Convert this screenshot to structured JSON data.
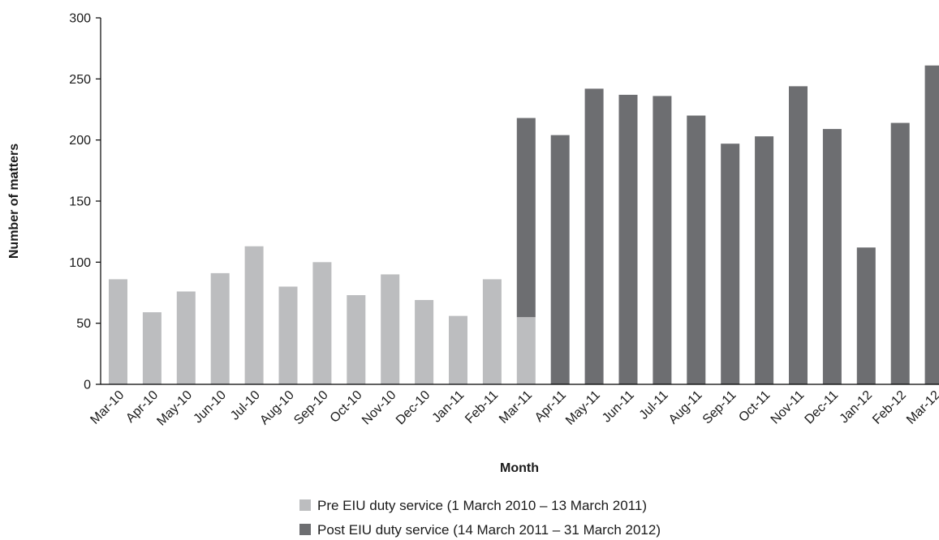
{
  "chart_data": {
    "type": "bar",
    "stacked": true,
    "xlabel": "Month",
    "ylabel": "Number of matters",
    "ylim": [
      0,
      300
    ],
    "yticks": [
      0,
      50,
      100,
      150,
      200,
      250,
      300
    ],
    "grid": false,
    "legend_position": "bottom",
    "categories": [
      "Mar-10",
      "Apr-10",
      "May-10",
      "Jun-10",
      "Jul-10",
      "Aug-10",
      "Sep-10",
      "Oct-10",
      "Nov-10",
      "Dec-10",
      "Jan-11",
      "Feb-11",
      "Mar-11",
      "Apr-11",
      "May-11",
      "Jun-11",
      "Jul-11",
      "Aug-11",
      "Sep-11",
      "Oct-11",
      "Nov-11",
      "Dec-11",
      "Jan-12",
      "Feb-12",
      "Mar-12"
    ],
    "series": [
      {
        "name": "Pre EIU duty service (1 March 2010 – 13 March 2011)",
        "color": "#bcbdbf",
        "values": [
          86,
          59,
          76,
          91,
          113,
          80,
          100,
          73,
          90,
          69,
          56,
          86,
          55,
          0,
          0,
          0,
          0,
          0,
          0,
          0,
          0,
          0,
          0,
          0,
          0
        ]
      },
      {
        "name": "Post EIU duty service (14 March 2011 – 31 March 2012)",
        "color": "#6d6e71",
        "values": [
          0,
          0,
          0,
          0,
          0,
          0,
          0,
          0,
          0,
          0,
          0,
          0,
          163,
          204,
          242,
          237,
          236,
          220,
          197,
          203,
          244,
          209,
          112,
          214,
          261
        ]
      }
    ]
  }
}
